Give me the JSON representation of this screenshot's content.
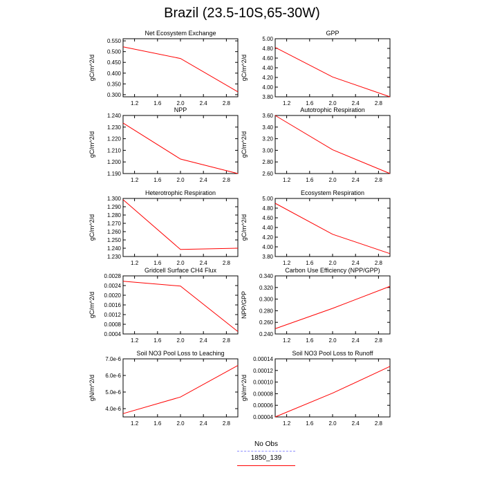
{
  "title": "Brazil (23.5-10S,65-30W)",
  "colors": {
    "model": "#ff0000",
    "obs": "#8c8cff",
    "axis": "#000000"
  },
  "legend": {
    "obs_label": "No Obs",
    "model_label": "1850_139"
  },
  "chart_data": [
    {
      "type": "line",
      "title": "Net Ecosystem Exchange",
      "ylabel": "gC/m^2/d",
      "x": [
        1,
        2,
        3
      ],
      "xlim": [
        1,
        3
      ],
      "xticks": [
        "1.2",
        "1.6",
        "2.0",
        "2.4",
        "2.8"
      ],
      "ylim": [
        0.29,
        0.56
      ],
      "yticks": [
        "0.300",
        "0.350",
        "0.400",
        "0.450",
        "0.500",
        "0.550"
      ],
      "series": [
        {
          "values": [
            0.522,
            0.468,
            0.313
          ]
        }
      ]
    },
    {
      "type": "line",
      "title": "GPP",
      "ylabel": "gC/m^2/d",
      "x": [
        1,
        2,
        3
      ],
      "xlim": [
        1,
        3
      ],
      "xticks": [
        "1.2",
        "1.6",
        "2.0",
        "2.4",
        "2.8"
      ],
      "ylim": [
        3.8,
        5.0
      ],
      "yticks": [
        "3.80",
        "4.00",
        "4.20",
        "4.40",
        "4.60",
        "4.80",
        "5.00"
      ],
      "series": [
        {
          "values": [
            4.82,
            4.21,
            3.8
          ]
        }
      ]
    },
    {
      "type": "line",
      "title": "NPP",
      "ylabel": "gC/m^2/d",
      "x": [
        1,
        2,
        3
      ],
      "xlim": [
        1,
        3
      ],
      "xticks": [
        "1.2",
        "1.6",
        "2.0",
        "2.4",
        "2.8"
      ],
      "ylim": [
        1.19,
        1.24
      ],
      "yticks": [
        "1.190",
        "1.200",
        "1.210",
        "1.220",
        "1.230",
        "1.240"
      ],
      "series": [
        {
          "values": [
            1.2335,
            1.2025,
            1.19
          ]
        }
      ]
    },
    {
      "type": "line",
      "title": "Autotrophic Respiration",
      "ylabel": "gC/m^2/d",
      "x": [
        1,
        2,
        3
      ],
      "xlim": [
        1,
        3
      ],
      "xticks": [
        "1.2",
        "1.6",
        "2.0",
        "2.4",
        "2.8"
      ],
      "ylim": [
        2.6,
        3.6
      ],
      "yticks": [
        "2.60",
        "2.80",
        "3.00",
        "3.20",
        "3.40",
        "3.60"
      ],
      "series": [
        {
          "values": [
            3.6,
            3.01,
            2.6
          ]
        }
      ]
    },
    {
      "type": "line",
      "title": "Heterotrophic Respiration",
      "ylabel": "gC/m^2/d",
      "x": [
        1,
        2,
        3
      ],
      "xlim": [
        1,
        3
      ],
      "xticks": [
        "1.2",
        "1.6",
        "2.0",
        "2.4",
        "2.8"
      ],
      "ylim": [
        1.23,
        1.3
      ],
      "yticks": [
        "1.230",
        "1.240",
        "1.250",
        "1.260",
        "1.270",
        "1.280",
        "1.290",
        "1.300"
      ],
      "series": [
        {
          "values": [
            1.2985,
            1.2385,
            1.24
          ]
        }
      ]
    },
    {
      "type": "line",
      "title": "Ecosystem Respiration",
      "ylabel": "gC/m^2/d",
      "x": [
        1,
        2,
        3
      ],
      "xlim": [
        1,
        3
      ],
      "xticks": [
        "1.2",
        "1.6",
        "2.0",
        "2.4",
        "2.8"
      ],
      "ylim": [
        3.8,
        5.0
      ],
      "yticks": [
        "3.80",
        "4.00",
        "4.20",
        "4.40",
        "4.60",
        "4.80",
        "5.00"
      ],
      "series": [
        {
          "values": [
            4.9,
            4.26,
            3.86
          ]
        }
      ]
    },
    {
      "type": "line",
      "title": "Gridcell Surface CH4 Flux",
      "ylabel": "gC/m^2/d",
      "x": [
        1,
        2,
        3
      ],
      "xlim": [
        1,
        3
      ],
      "xticks": [
        "1.2",
        "1.6",
        "2.0",
        "2.4",
        "2.8"
      ],
      "ylim": [
        0.0004,
        0.0028
      ],
      "yticks": [
        "0.0004",
        "0.0008",
        "0.0012",
        "0.0016",
        "0.0020",
        "0.0024",
        "0.0028"
      ],
      "series": [
        {
          "values": [
            0.00258,
            0.00238,
            0.0005
          ]
        }
      ]
    },
    {
      "type": "line",
      "title": "Carbon Use Efficiency (NPP/GPP)",
      "ylabel": "NPP/GPP",
      "x": [
        1,
        2,
        3
      ],
      "xlim": [
        1,
        3
      ],
      "xticks": [
        "1.2",
        "1.6",
        "2.0",
        "2.4",
        "2.8"
      ],
      "ylim": [
        0.24,
        0.34
      ],
      "yticks": [
        "0.240",
        "0.260",
        "0.280",
        "0.300",
        "0.320",
        "0.340"
      ],
      "series": [
        {
          "values": [
            0.249,
            0.284,
            0.322
          ]
        }
      ]
    },
    {
      "type": "line",
      "title": "Soil NO3 Pool Loss to Leaching",
      "ylabel": "gN/m^2/d",
      "x": [
        1,
        2,
        3
      ],
      "xlim": [
        1,
        3
      ],
      "xticks": [
        "1.2",
        "1.6",
        "2.0",
        "2.4",
        "2.8"
      ],
      "ylim": [
        3.5e-06,
        7e-06
      ],
      "yticks": [
        "4.0e-6",
        "5.0e-6",
        "6.0e-6",
        "7.0e-6"
      ],
      "ytick_values": [
        4e-06,
        5e-06,
        6e-06,
        7e-06
      ],
      "series": [
        {
          "values": [
            3.7e-06,
            4.7e-06,
            6.6e-06
          ]
        }
      ]
    },
    {
      "type": "line",
      "title": "Soil NO3 Pool Loss to Runoff",
      "ylabel": "gN/m^2/d",
      "x": [
        1,
        2,
        3
      ],
      "xlim": [
        1,
        3
      ],
      "xticks": [
        "1.2",
        "1.6",
        "2.0",
        "2.4",
        "2.8"
      ],
      "ylim": [
        4e-05,
        0.00014
      ],
      "yticks": [
        "0.00004",
        "0.00006",
        "0.00008",
        "0.00010",
        "0.00012",
        "0.00014"
      ],
      "series": [
        {
          "values": [
            4e-05,
            8.1e-05,
            0.000127
          ]
        }
      ]
    }
  ]
}
